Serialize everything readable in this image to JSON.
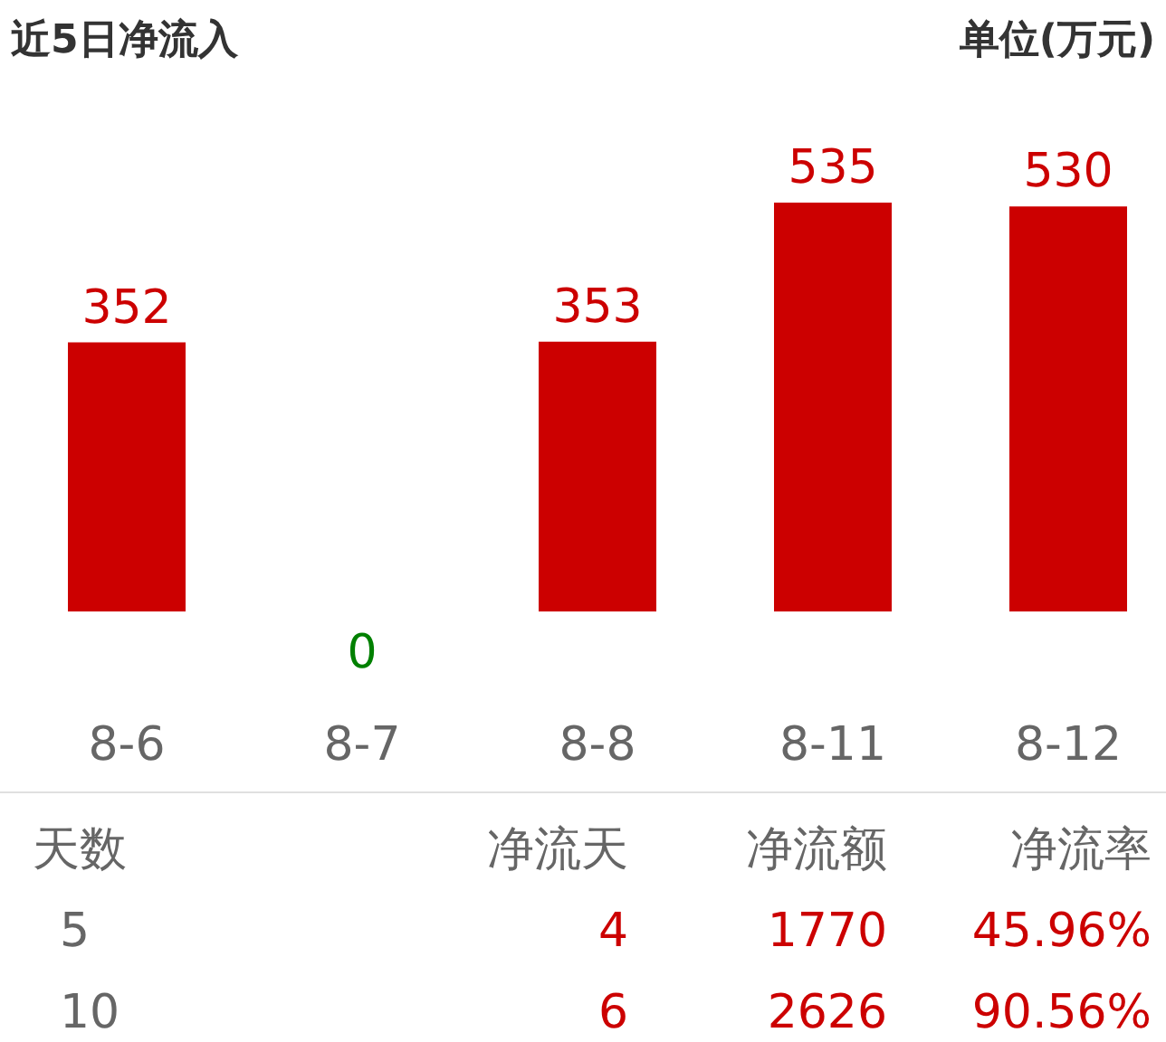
{
  "chart_data": {
    "type": "bar",
    "title": "近5日净流入",
    "subtitle": "单位(万元)",
    "categories": [
      "8-6",
      "8-7",
      "8-8",
      "8-11",
      "8-12"
    ],
    "values": [
      352,
      0,
      353,
      535,
      530
    ],
    "colors": [
      "#cc0000",
      "#008000",
      "#cc0000",
      "#cc0000",
      "#cc0000"
    ],
    "data_labels": true,
    "annotations": [
      "天数",
      "净流天",
      "净流额",
      "净流率",
      "5",
      "4",
      "1770",
      "45.96%",
      "10",
      "6",
      "2626",
      "90.56%"
    ]
  }
}
